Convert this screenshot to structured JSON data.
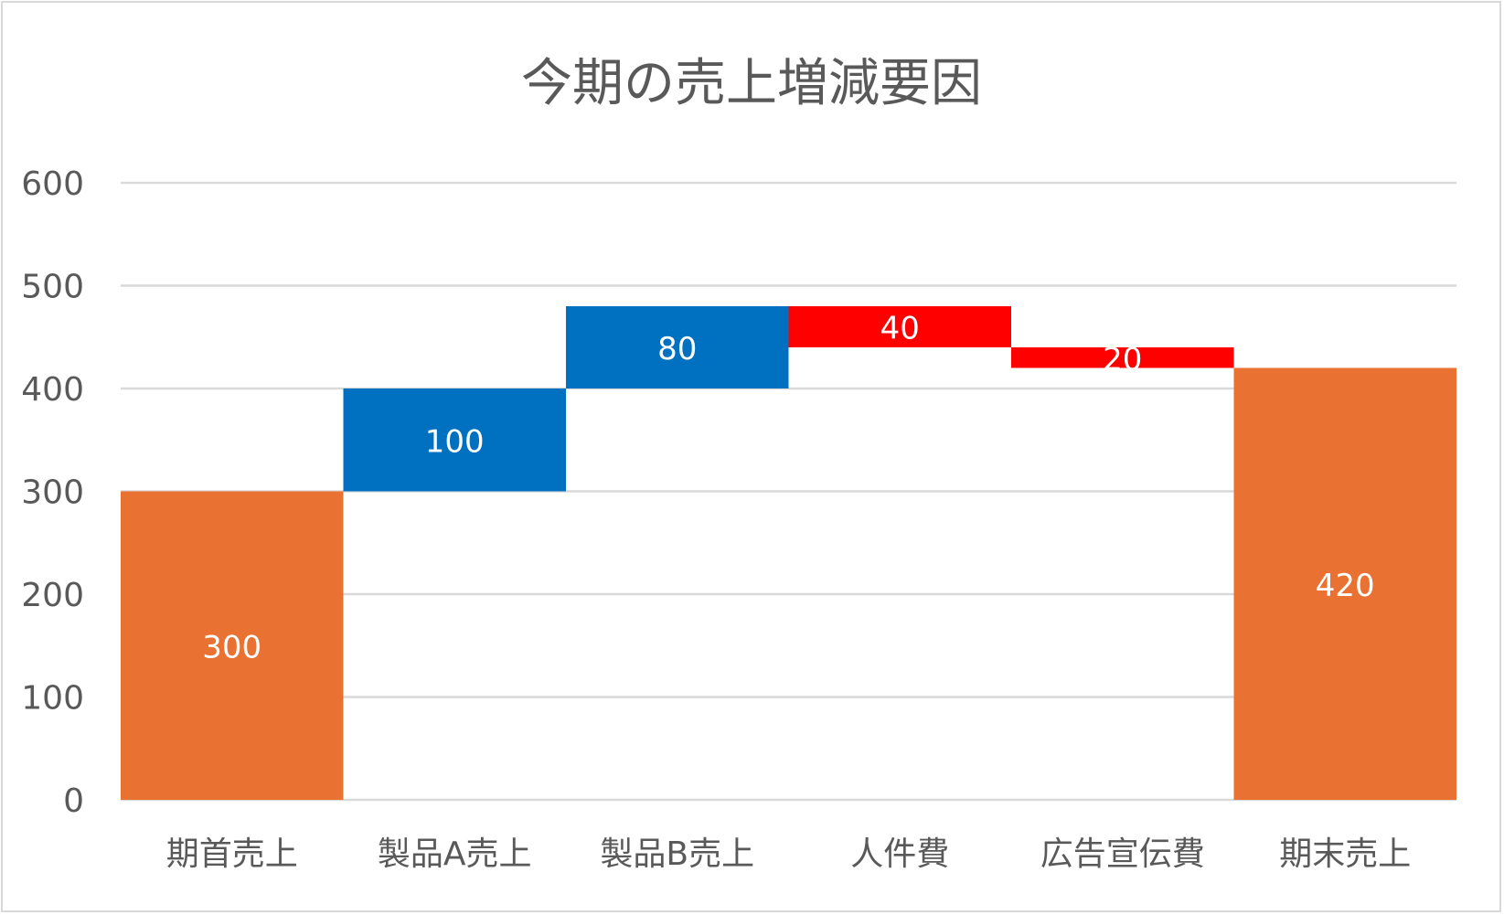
{
  "chart_data": {
    "type": "waterfall",
    "title": "今期の売上増減要因",
    "categories": [
      "期首売上",
      "製品A売上",
      "製品B売上",
      "人件費",
      "広告宣伝費",
      "期末売上"
    ],
    "values": [
      300,
      100,
      80,
      -40,
      -20,
      420
    ],
    "data_labels": [
      "300",
      "100",
      "80",
      "40",
      "20",
      "420"
    ],
    "kinds": [
      "total",
      "increase",
      "increase",
      "decrease",
      "decrease",
      "total"
    ],
    "ylim": [
      0,
      600
    ],
    "yticks": [
      0,
      100,
      200,
      300,
      400,
      500,
      600
    ],
    "grid": true,
    "legend": "none",
    "colors": {
      "total": "#E97132",
      "increase": "#0070C0",
      "decrease": "#FF0000",
      "grid": "#d9d9d9",
      "text": "#595959"
    }
  }
}
